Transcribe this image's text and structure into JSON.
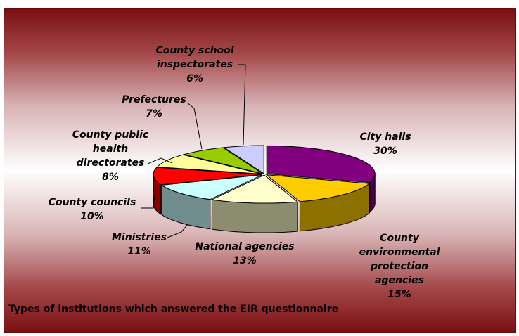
{
  "chart_data": {
    "type": "pie",
    "style": "3d-exploded",
    "title": "Types of institutions which answered the EIR questionnaire",
    "slices": [
      {
        "label": "City halls",
        "value": 30,
        "display": "30%",
        "color": "#800080"
      },
      {
        "label": "County environmental protection agencies",
        "value": 15,
        "display": "15%",
        "color": "#FFCC00"
      },
      {
        "label": "National agencies",
        "value": 13,
        "display": "13%",
        "color": "#FFFFCC"
      },
      {
        "label": "Ministries",
        "value": 11,
        "display": "11%",
        "color": "#CCFFFF"
      },
      {
        "label": "County councils",
        "value": 10,
        "display": "10%",
        "color": "#FF0000"
      },
      {
        "label": "County public health directorates",
        "value": 8,
        "display": "8%",
        "color": "#FFFF99"
      },
      {
        "label": "Prefectures",
        "value": 7,
        "display": "7%",
        "color": "#99CC00"
      },
      {
        "label": "County school inspectorates",
        "value": 6,
        "display": "6%",
        "color": "#CCCCFF"
      }
    ],
    "legend": "none"
  }
}
